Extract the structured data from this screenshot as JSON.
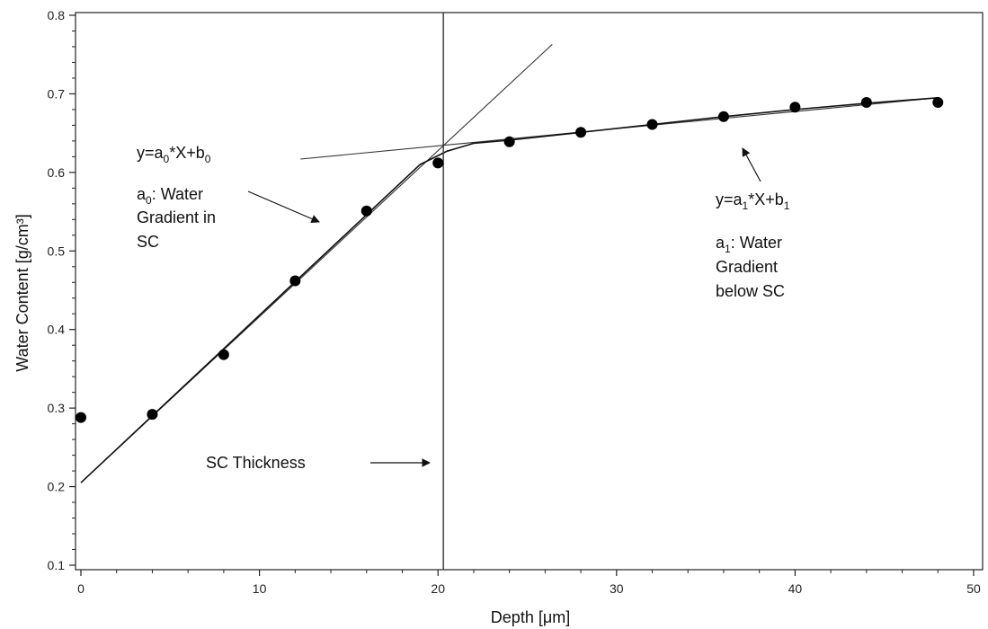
{
  "chart_data": {
    "type": "scatter",
    "xlabel": "Depth [μm]",
    "ylabel": "Water Content [g/cm³]",
    "xlim": [
      0,
      50
    ],
    "ylim": [
      0.1,
      0.8
    ],
    "x_ticks": [
      0,
      10,
      20,
      30,
      40,
      50
    ],
    "y_ticks": [
      0.1,
      0.2,
      0.3,
      0.4,
      0.5,
      0.6,
      0.7,
      0.8
    ],
    "grid": false,
    "series": [
      {
        "points": [
          {
            "x": 0,
            "y": 0.288
          },
          {
            "x": 4,
            "y": 0.292
          },
          {
            "x": 8,
            "y": 0.368
          },
          {
            "x": 12,
            "y": 0.462
          },
          {
            "x": 16,
            "y": 0.551
          },
          {
            "x": 20,
            "y": 0.612
          },
          {
            "x": 24,
            "y": 0.639
          },
          {
            "x": 28,
            "y": 0.651
          },
          {
            "x": 32,
            "y": 0.661
          },
          {
            "x": 36,
            "y": 0.671
          },
          {
            "x": 40,
            "y": 0.683
          },
          {
            "x": 44,
            "y": 0.689
          },
          {
            "x": 48,
            "y": 0.689
          }
        ]
      }
    ],
    "fit_lines": [
      {
        "from": {
          "x": 0,
          "y": 0.205
        },
        "to": {
          "x": 26.4,
          "y": 0.763
        }
      },
      {
        "from": {
          "x": 12.3,
          "y": 0.617
        },
        "to": {
          "x": 48,
          "y": 0.695
        }
      }
    ],
    "fit_curve": [
      {
        "x": 0,
        "y": 0.205
      },
      {
        "x": 19,
        "y": 0.61
      },
      {
        "x": 20.5,
        "y": 0.627
      },
      {
        "x": 22,
        "y": 0.637
      },
      {
        "x": 24,
        "y": 0.641
      },
      {
        "x": 28,
        "y": 0.651
      },
      {
        "x": 32,
        "y": 0.661
      },
      {
        "x": 36,
        "y": 0.671
      },
      {
        "x": 40,
        "y": 0.68
      },
      {
        "x": 44,
        "y": 0.688
      },
      {
        "x": 48,
        "y": 0.695
      }
    ],
    "vertical_line_x": 20.3,
    "annotations": {
      "eq0": {
        "main": "y=a",
        "sub": "0",
        "rest": "*X+b",
        "sub2": "0"
      },
      "a0_line1": {
        "main": "a",
        "sub": "0",
        "rest": ": Water"
      },
      "a0_line2": "Gradient in",
      "a0_line3": "SC",
      "eq1": {
        "main": "y=a",
        "sub": "1",
        "rest": "*X+b",
        "sub2": "1"
      },
      "a1_line1": {
        "main": "a",
        "sub": "1",
        "rest": ": Water"
      },
      "a1_line2": "Gradient",
      "a1_line3": "below SC",
      "sc_thickness": "SC Thickness"
    }
  }
}
